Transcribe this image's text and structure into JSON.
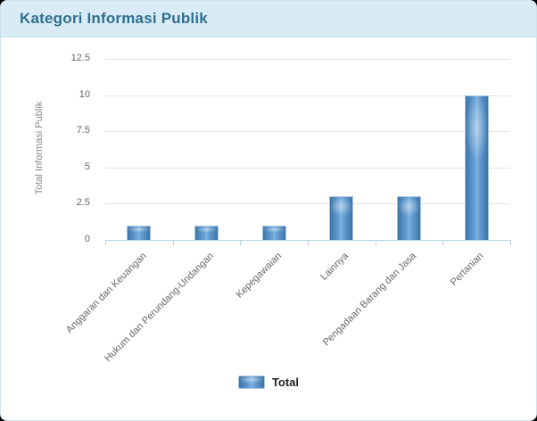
{
  "header": {
    "title": "Kategori Informasi Publik"
  },
  "chart_data": {
    "type": "bar",
    "title": "Kategori Informasi Publik",
    "categories": [
      "Anggaran dan Keuangan",
      "Hukum dan Perundang-Undangan",
      "Kepegawaian",
      "Lainnya",
      "Pengadaan Barang dan Jasa",
      "Pertanian"
    ],
    "series": [
      {
        "name": "Total",
        "values": [
          1,
          1,
          1,
          3,
          3,
          10
        ]
      }
    ],
    "xlabel": "",
    "ylabel": "Total Informasi Publik",
    "ylim": [
      0,
      12.5
    ],
    "yticks": [
      0,
      2.5,
      5,
      7.5,
      10,
      12.5
    ],
    "grid": true,
    "legend_position": "bottom"
  },
  "legend": {
    "label": "Total"
  },
  "colors": {
    "header_bg": "#d9ecf5",
    "header_text": "#2e6f8e",
    "bar_dark": "#3a74a9",
    "bar_light": "#7fb2e0",
    "bar_border": "#a9c7e0",
    "axis_line": "#b7d4e6",
    "grid_line": "#e2e2e2",
    "tick_text": "#666666",
    "axis_title_text": "#888888",
    "legend_text": "#222222",
    "card_border": "#cfe4ef",
    "page_bg": "#000000"
  }
}
